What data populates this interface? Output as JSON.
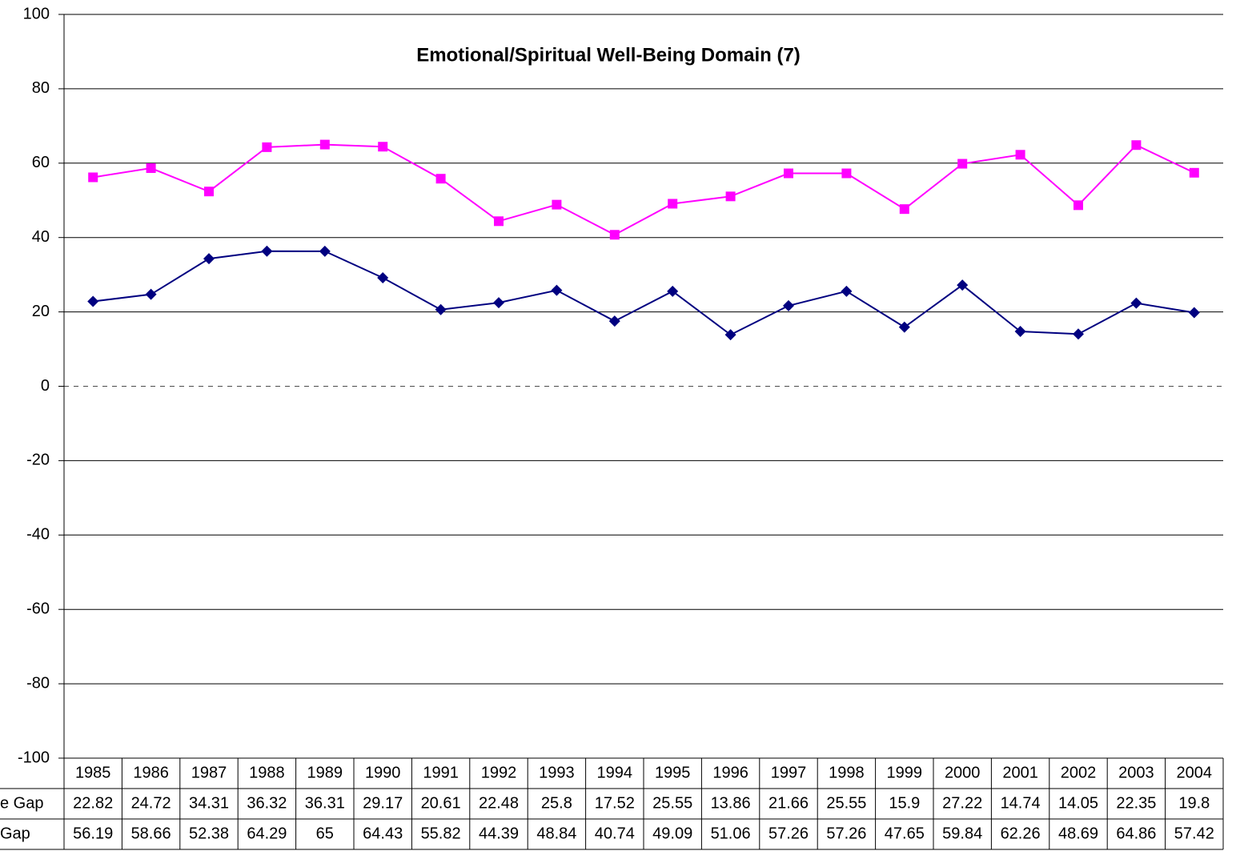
{
  "chart_data": {
    "type": "line",
    "title": "Emotional/Spiritual Well-Being Domain (7)",
    "categories": [
      "1985",
      "1986",
      "1987",
      "1988",
      "1989",
      "1990",
      "1991",
      "1992",
      "1993",
      "1994",
      "1995",
      "1996",
      "1997",
      "1998",
      "1999",
      "2000",
      "2001",
      "2002",
      "2003",
      "2004"
    ],
    "series": [
      {
        "name": "e Gap",
        "color": "#000080",
        "marker": "diamond",
        "values": [
          22.82,
          24.72,
          34.31,
          36.32,
          36.31,
          29.17,
          20.61,
          22.48,
          25.8,
          17.52,
          25.55,
          13.86,
          21.66,
          25.55,
          15.9,
          27.22,
          14.74,
          14.05,
          22.35,
          19.8
        ]
      },
      {
        "name": "Gap",
        "color": "#ff00ff",
        "marker": "square",
        "values": [
          56.19,
          58.66,
          52.38,
          64.29,
          65,
          64.43,
          55.82,
          44.39,
          48.84,
          40.74,
          49.09,
          51.06,
          57.26,
          57.26,
          47.65,
          59.84,
          62.26,
          48.69,
          64.86,
          57.42
        ]
      }
    ],
    "ylim": [
      -100,
      100
    ],
    "yticks": [
      -100,
      -80,
      -60,
      -40,
      -20,
      0,
      20,
      40,
      60,
      80,
      100
    ],
    "grid": true,
    "data_table": true
  }
}
